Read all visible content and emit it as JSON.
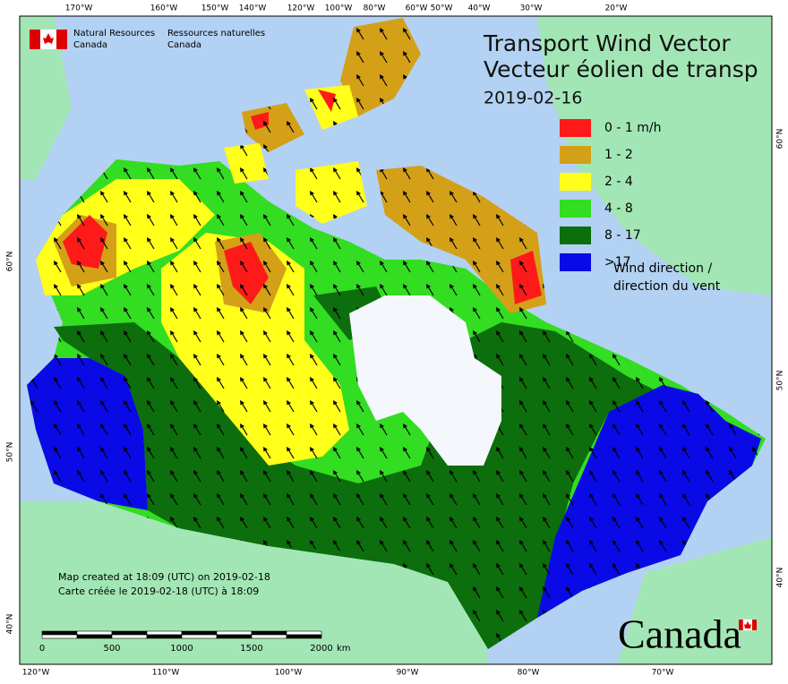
{
  "header": {
    "agency_en": [
      "Natural Resources",
      "Canada"
    ],
    "agency_fr": [
      "Ressources naturelles",
      "Canada"
    ]
  },
  "title": [
    "Transport Wind Vector",
    "Vecteur éolien de transp"
  ],
  "date": "2019-02-16",
  "legend": {
    "items": [
      {
        "label": "0 - 1 m/h",
        "color": "#ff1a1a"
      },
      {
        "label": "1 - 2",
        "color": "#d4a017"
      },
      {
        "label": "2 - 4",
        "color": "#ffff1a"
      },
      {
        "label": "4 - 8",
        "color": "#33dd22"
      },
      {
        "label": "8 - 17",
        "color": "#0c6e0c"
      },
      {
        "label": ">17",
        "color": "#0a0ae6"
      }
    ],
    "wind": [
      "Wind direction /",
      "direction du vent"
    ]
  },
  "notes": [
    "Map created at 18:09 (UTC) on 2019-02-18",
    "Carte créée le 2019-02-18 (UTC) à 18:09"
  ],
  "scale": {
    "ticks": [
      0,
      500,
      1000,
      1500,
      2000
    ],
    "unit": "km"
  },
  "graticule": {
    "top": [
      "170°W",
      "160°W",
      "150°W",
      "140°W",
      "120°W",
      "100°W",
      "80°W",
      "60°W",
      "50°W",
      "40°W",
      "30°W",
      "20°W"
    ],
    "bottom": [
      "120°W",
      "110°W",
      "100°W",
      "90°W",
      "80°W",
      "70°W"
    ],
    "left": [
      "60°N",
      "50°N",
      "40°N"
    ],
    "right": [
      "60°N",
      "50°N",
      "40°N"
    ]
  },
  "wordmark": "Canada"
}
